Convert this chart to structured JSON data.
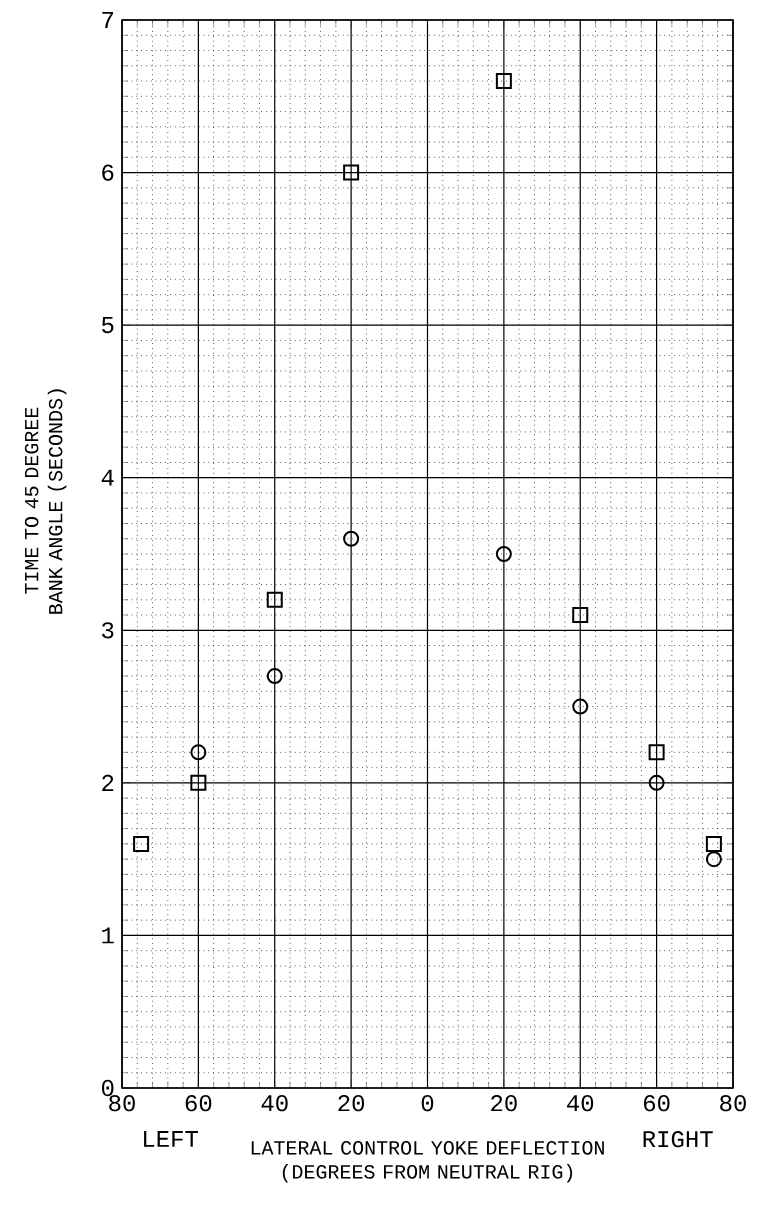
{
  "chart_data": {
    "type": "scatter",
    "xlabel": "LATERAL CONTROL YOKE DEFLECTION (DEGREES FROM NEUTRAL RIG)",
    "ylabel": "TIME TO 45 DEGREE BANK ANGLE (SECONDS)",
    "annotations": [
      "LEFT",
      "RIGHT"
    ],
    "xlim": [
      -80,
      80
    ],
    "xticks": [
      {
        "value": -80,
        "label": "80"
      },
      {
        "value": -60,
        "label": "60"
      },
      {
        "value": -40,
        "label": "40"
      },
      {
        "value": -20,
        "label": "20"
      },
      0,
      20,
      40,
      60,
      80
    ],
    "ylim": [
      0,
      7
    ],
    "yticks": [
      0,
      1,
      2,
      3,
      4,
      5,
      6,
      7
    ],
    "grid": true,
    "series": [
      {
        "color": "#000000",
        "marker": "square",
        "x": [
          -75,
          -60,
          -40,
          -20,
          20,
          40,
          60,
          75
        ],
        "values": [
          1.6,
          2.0,
          3.2,
          6.0,
          6.6,
          3.1,
          2.2,
          1.6
        ]
      },
      {
        "color": "#000000",
        "marker": "circle",
        "x": [
          -60,
          -40,
          -20,
          20,
          40,
          60,
          75
        ],
        "values": [
          2.2,
          2.7,
          3.6,
          3.5,
          2.5,
          2.0,
          1.5
        ]
      }
    ]
  }
}
